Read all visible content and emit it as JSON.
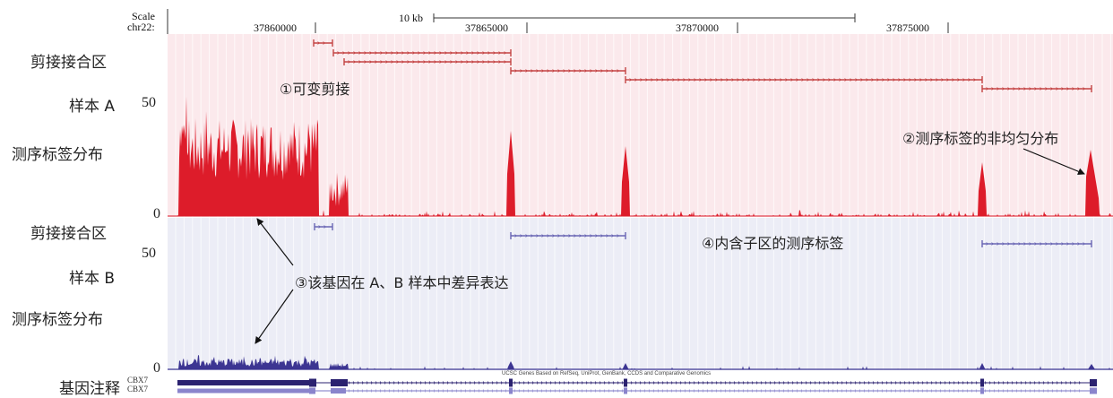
{
  "ruler": {
    "scale_label": "Scale",
    "chrom_label": "chr22:",
    "scale_bar_label": "10 kb",
    "positions": [
      "37860000",
      "37865000",
      "37870000",
      "37875000"
    ]
  },
  "tracks": {
    "sample_a": {
      "junction_label": "剪接接合区",
      "sample_label": "样本 A",
      "coverage_label": "测序标签分布",
      "y_max_label": "50",
      "y_min_label": "0"
    },
    "sample_b": {
      "junction_label": "剪接接合区",
      "sample_label": "样本 B",
      "coverage_label": "测序标签分布",
      "y_max_label": "50",
      "y_min_label": "0"
    },
    "annotation": {
      "label": "基因注释",
      "gene_names": [
        "CBX7",
        "CBX7"
      ],
      "source_text": "UCSC Genes Based on RefSeq, UniProt, GenBank, CCDS and Comparative Genomics"
    }
  },
  "annotations": {
    "alt_splicing": "①可变剪接",
    "nonuniform": "②测序标签的非均匀分布",
    "diff_expr": "③该基因在 A、B 样本中差异表达",
    "intron_tags": "④内含子区的测序标签"
  },
  "colors": {
    "track_a_bg": "#fbe9ec",
    "track_b_bg": "#ecedf6",
    "track_a_signal": "#dd1c2a",
    "track_b_signal": "#3c3592",
    "junction_a": "#c44444",
    "junction_b": "#6a66b4",
    "gene_model": "#2b2270"
  }
}
